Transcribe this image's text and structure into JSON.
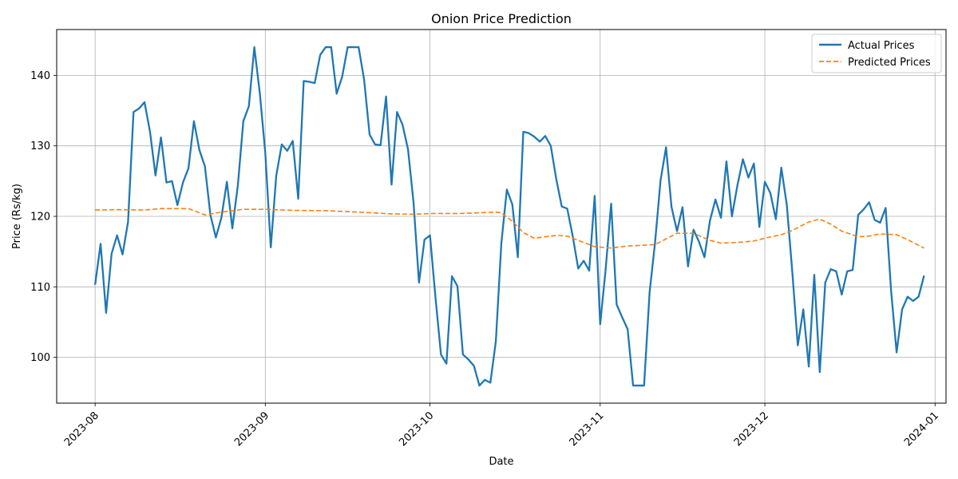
{
  "chart_data": {
    "type": "line",
    "title": "Onion Price Prediction",
    "xlabel": "Date",
    "ylabel": "Price (Rs/kg)",
    "xlim": [
      "2023-07-25",
      "2024-01-03"
    ],
    "ylim": [
      93.5,
      146.5
    ],
    "y_ticks": [
      100,
      110,
      120,
      130,
      140
    ],
    "x_ticks": [
      {
        "date": "2023-08-01",
        "label": "2023-08"
      },
      {
        "date": "2023-09-01",
        "label": "2023-09"
      },
      {
        "date": "2023-10-01",
        "label": "2023-10"
      },
      {
        "date": "2023-11-01",
        "label": "2023-11"
      },
      {
        "date": "2023-12-01",
        "label": "2023-12"
      },
      {
        "date": "2024-01-01",
        "label": "2024-01"
      }
    ],
    "grid": true,
    "legend_position": "top-right",
    "series": [
      {
        "name": "Actual Prices",
        "color": "#1f77b4",
        "style": "solid",
        "points": [
          [
            "2023-08-01",
            110.3
          ],
          [
            "2023-08-02",
            116.1
          ],
          [
            "2023-08-03",
            106.3
          ],
          [
            "2023-08-04",
            114.7
          ],
          [
            "2023-08-05",
            117.3
          ],
          [
            "2023-08-06",
            114.6
          ],
          [
            "2023-08-07",
            119.2
          ],
          [
            "2023-08-08",
            134.8
          ],
          [
            "2023-08-09",
            135.3
          ],
          [
            "2023-08-10",
            136.2
          ],
          [
            "2023-08-11",
            132.0
          ],
          [
            "2023-08-12",
            125.8
          ],
          [
            "2023-08-13",
            131.2
          ],
          [
            "2023-08-14",
            124.8
          ],
          [
            "2023-08-15",
            125.0
          ],
          [
            "2023-08-16",
            121.6
          ],
          [
            "2023-08-17",
            124.8
          ],
          [
            "2023-08-18",
            126.8
          ],
          [
            "2023-08-19",
            133.5
          ],
          [
            "2023-08-20",
            129.4
          ],
          [
            "2023-08-21",
            127.1
          ],
          [
            "2023-08-22",
            120.2
          ],
          [
            "2023-08-23",
            117.0
          ],
          [
            "2023-08-24",
            119.8
          ],
          [
            "2023-08-25",
            124.9
          ],
          [
            "2023-08-26",
            118.3
          ],
          [
            "2023-08-27",
            124.4
          ],
          [
            "2023-08-28",
            133.5
          ],
          [
            "2023-08-29",
            135.6
          ],
          [
            "2023-08-30",
            144.0
          ],
          [
            "2023-08-31",
            137.5
          ],
          [
            "2023-09-01",
            129.0
          ],
          [
            "2023-09-02",
            115.6
          ],
          [
            "2023-09-03",
            125.8
          ],
          [
            "2023-09-04",
            130.2
          ],
          [
            "2023-09-05",
            129.3
          ],
          [
            "2023-09-06",
            130.7
          ],
          [
            "2023-09-07",
            122.5
          ],
          [
            "2023-09-08",
            139.2
          ],
          [
            "2023-09-09",
            139.1
          ],
          [
            "2023-09-10",
            138.9
          ],
          [
            "2023-09-11",
            142.9
          ],
          [
            "2023-09-12",
            144.0
          ],
          [
            "2023-09-13",
            144.0
          ],
          [
            "2023-09-14",
            137.4
          ],
          [
            "2023-09-15",
            139.8
          ],
          [
            "2023-09-16",
            144.0
          ],
          [
            "2023-09-17",
            144.0
          ],
          [
            "2023-09-18",
            144.0
          ],
          [
            "2023-09-19",
            139.4
          ],
          [
            "2023-09-20",
            131.6
          ],
          [
            "2023-09-21",
            130.2
          ],
          [
            "2023-09-22",
            130.1
          ],
          [
            "2023-09-23",
            137.0
          ],
          [
            "2023-09-24",
            124.5
          ],
          [
            "2023-09-25",
            134.8
          ],
          [
            "2023-09-26",
            133.0
          ],
          [
            "2023-09-27",
            129.5
          ],
          [
            "2023-09-28",
            122.0
          ],
          [
            "2023-09-29",
            110.6
          ],
          [
            "2023-09-30",
            116.7
          ],
          [
            "2023-10-01",
            117.3
          ],
          [
            "2023-10-02",
            108.5
          ],
          [
            "2023-10-03",
            100.4
          ],
          [
            "2023-10-04",
            99.1
          ],
          [
            "2023-10-05",
            111.5
          ],
          [
            "2023-10-06",
            110.1
          ],
          [
            "2023-10-07",
            100.4
          ],
          [
            "2023-10-08",
            99.7
          ],
          [
            "2023-10-09",
            98.8
          ],
          [
            "2023-10-10",
            96.0
          ],
          [
            "2023-10-11",
            96.8
          ],
          [
            "2023-10-12",
            96.4
          ],
          [
            "2023-10-13",
            102.3
          ],
          [
            "2023-10-14",
            116.2
          ],
          [
            "2023-10-15",
            123.8
          ],
          [
            "2023-10-16",
            121.7
          ],
          [
            "2023-10-17",
            114.2
          ],
          [
            "2023-10-18",
            132.0
          ],
          [
            "2023-10-19",
            131.8
          ],
          [
            "2023-10-20",
            131.3
          ],
          [
            "2023-10-21",
            130.6
          ],
          [
            "2023-10-22",
            131.4
          ],
          [
            "2023-10-23",
            130.0
          ],
          [
            "2023-10-24",
            125.3
          ],
          [
            "2023-10-25",
            121.4
          ],
          [
            "2023-10-26",
            121.1
          ],
          [
            "2023-10-27",
            117.2
          ],
          [
            "2023-10-28",
            112.6
          ],
          [
            "2023-10-29",
            113.7
          ],
          [
            "2023-10-30",
            112.3
          ],
          [
            "2023-10-31",
            122.9
          ],
          [
            "2023-11-01",
            104.7
          ],
          [
            "2023-11-02",
            112.5
          ],
          [
            "2023-11-03",
            121.8
          ],
          [
            "2023-11-04",
            107.5
          ],
          [
            "2023-11-05",
            105.7
          ],
          [
            "2023-11-06",
            104.0
          ],
          [
            "2023-11-07",
            96.0
          ],
          [
            "2023-11-08",
            96.0
          ],
          [
            "2023-11-09",
            96.0
          ],
          [
            "2023-11-10",
            109.2
          ],
          [
            "2023-11-11",
            116.3
          ],
          [
            "2023-11-12",
            125.1
          ],
          [
            "2023-11-13",
            129.8
          ],
          [
            "2023-11-14",
            121.3
          ],
          [
            "2023-11-15",
            117.9
          ],
          [
            "2023-11-16",
            121.3
          ],
          [
            "2023-11-17",
            112.9
          ],
          [
            "2023-11-18",
            118.1
          ],
          [
            "2023-11-19",
            116.4
          ],
          [
            "2023-11-20",
            114.2
          ],
          [
            "2023-11-21",
            119.4
          ],
          [
            "2023-11-22",
            122.4
          ],
          [
            "2023-11-23",
            119.8
          ],
          [
            "2023-11-24",
            127.8
          ],
          [
            "2023-11-25",
            120.0
          ],
          [
            "2023-11-26",
            124.4
          ],
          [
            "2023-11-27",
            128.1
          ],
          [
            "2023-11-28",
            125.5
          ],
          [
            "2023-11-29",
            127.5
          ],
          [
            "2023-11-30",
            118.5
          ],
          [
            "2023-12-01",
            124.9
          ],
          [
            "2023-12-02",
            123.3
          ],
          [
            "2023-12-03",
            119.6
          ],
          [
            "2023-12-04",
            126.9
          ],
          [
            "2023-12-05",
            121.6
          ],
          [
            "2023-12-06",
            112.1
          ],
          [
            "2023-12-07",
            101.7
          ],
          [
            "2023-12-08",
            106.8
          ],
          [
            "2023-12-09",
            98.7
          ],
          [
            "2023-12-10",
            111.7
          ],
          [
            "2023-12-11",
            97.9
          ],
          [
            "2023-12-12",
            110.6
          ],
          [
            "2023-12-13",
            112.5
          ],
          [
            "2023-12-14",
            112.2
          ],
          [
            "2023-12-15",
            108.9
          ],
          [
            "2023-12-16",
            112.2
          ],
          [
            "2023-12-17",
            112.4
          ],
          [
            "2023-12-18",
            120.2
          ],
          [
            "2023-12-19",
            121.0
          ],
          [
            "2023-12-20",
            122.0
          ],
          [
            "2023-12-21",
            119.5
          ],
          [
            "2023-12-22",
            119.1
          ],
          [
            "2023-12-23",
            121.2
          ],
          [
            "2023-12-24",
            109.4
          ],
          [
            "2023-12-25",
            100.7
          ],
          [
            "2023-12-26",
            106.8
          ],
          [
            "2023-12-27",
            108.6
          ],
          [
            "2023-12-28",
            108.0
          ],
          [
            "2023-12-29",
            108.6
          ],
          [
            "2023-12-30",
            111.6
          ]
        ]
      },
      {
        "name": "Predicted Prices",
        "color": "#ff7f0e",
        "style": "dashed",
        "points": [
          [
            "2023-08-01",
            120.9
          ],
          [
            "2023-08-05",
            120.95
          ],
          [
            "2023-08-10",
            120.9
          ],
          [
            "2023-08-13",
            121.1
          ],
          [
            "2023-08-18",
            121.1
          ],
          [
            "2023-08-21",
            120.2
          ],
          [
            "2023-08-24",
            120.6
          ],
          [
            "2023-08-28",
            121.0
          ],
          [
            "2023-09-01",
            121.0
          ],
          [
            "2023-09-06",
            120.85
          ],
          [
            "2023-09-12",
            120.8
          ],
          [
            "2023-09-18",
            120.6
          ],
          [
            "2023-09-24",
            120.35
          ],
          [
            "2023-09-28",
            120.3
          ],
          [
            "2023-10-01",
            120.4
          ],
          [
            "2023-10-06",
            120.4
          ],
          [
            "2023-10-10",
            120.5
          ],
          [
            "2023-10-13",
            120.6
          ],
          [
            "2023-10-14",
            120.5
          ],
          [
            "2023-10-16",
            119.3
          ],
          [
            "2023-10-18",
            117.7
          ],
          [
            "2023-10-20",
            116.9
          ],
          [
            "2023-10-22",
            117.1
          ],
          [
            "2023-10-24",
            117.3
          ],
          [
            "2023-10-26",
            117.2
          ],
          [
            "2023-10-28",
            116.6
          ],
          [
            "2023-10-31",
            115.7
          ],
          [
            "2023-11-03",
            115.5
          ],
          [
            "2023-11-06",
            115.8
          ],
          [
            "2023-11-09",
            115.9
          ],
          [
            "2023-11-11",
            116.0
          ],
          [
            "2023-11-13",
            116.8
          ],
          [
            "2023-11-15",
            117.6
          ],
          [
            "2023-11-18",
            117.6
          ],
          [
            "2023-11-21",
            116.6
          ],
          [
            "2023-11-23",
            116.2
          ],
          [
            "2023-11-26",
            116.3
          ],
          [
            "2023-11-29",
            116.5
          ],
          [
            "2023-12-01",
            116.9
          ],
          [
            "2023-12-04",
            117.4
          ],
          [
            "2023-12-06",
            118.0
          ],
          [
            "2023-12-09",
            119.2
          ],
          [
            "2023-12-11",
            119.6
          ],
          [
            "2023-12-13",
            118.9
          ],
          [
            "2023-12-15",
            117.9
          ],
          [
            "2023-12-18",
            117.1
          ],
          [
            "2023-12-20",
            117.2
          ],
          [
            "2023-12-22",
            117.5
          ],
          [
            "2023-12-25",
            117.4
          ],
          [
            "2023-12-27",
            116.7
          ],
          [
            "2023-12-30",
            115.5
          ]
        ]
      }
    ]
  }
}
